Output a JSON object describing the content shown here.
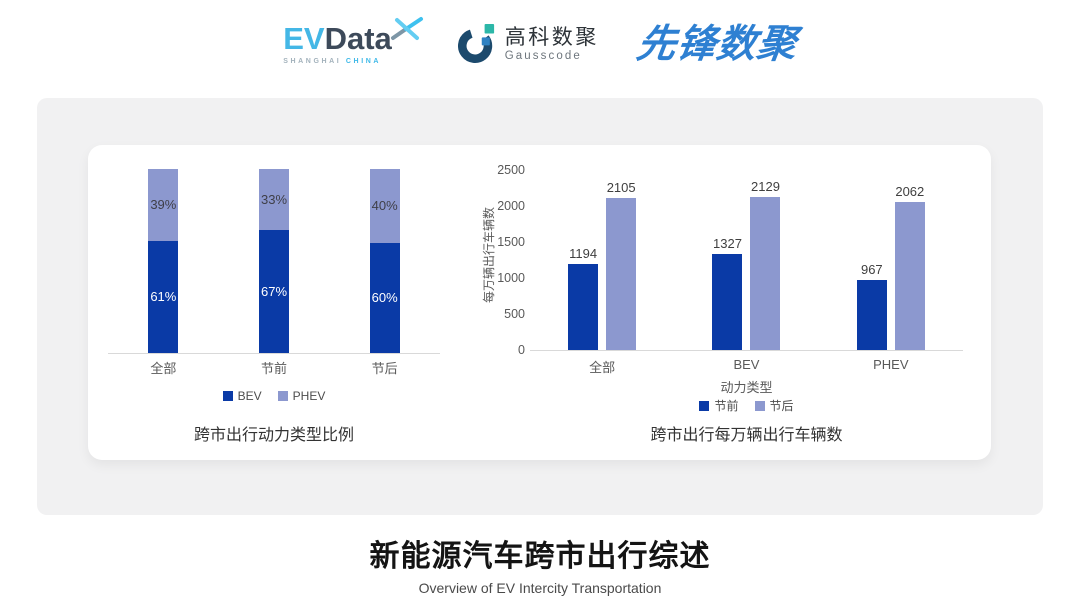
{
  "header": {
    "logos": {
      "evdata": {
        "word_ev": "EV",
        "word_data": "Data",
        "sub_left": "SHANGHAI",
        "sub_right": "CHINA"
      },
      "gausscode": {
        "name_cn": "高科数聚",
        "name_en": "Gausscode"
      },
      "xianfeng": {
        "name_cn": "先锋数聚"
      }
    }
  },
  "chart_data": [
    {
      "type": "bar",
      "subtype": "stacked-100-percent",
      "title": "跨市出行动力类型比例",
      "categories": [
        "全部",
        "节前",
        "节后"
      ],
      "series": [
        {
          "name": "BEV",
          "color": "#0a3aa6",
          "label_color": "#ffffff",
          "values": [
            61,
            67,
            60
          ]
        },
        {
          "name": "PHEV",
          "color": "#8c98cf",
          "label_color": "#3f3f48",
          "values": [
            39,
            33,
            40
          ]
        }
      ],
      "value_suffix": "%",
      "legend_position": "bottom",
      "grid": false
    },
    {
      "type": "bar",
      "subtype": "grouped",
      "title": "跨市出行每万辆出行车辆数",
      "categories": [
        "全部",
        "BEV",
        "PHEV"
      ],
      "series": [
        {
          "name": "节前",
          "color": "#0a3aa6",
          "values": [
            1194,
            1327,
            967
          ]
        },
        {
          "name": "节后",
          "color": "#8c98cf",
          "values": [
            2105,
            2129,
            2062
          ]
        }
      ],
      "xlabel": "动力类型",
      "ylabel": "每万辆出行车辆数",
      "ylim": [
        0,
        2500
      ],
      "yticks": [
        0,
        500,
        1000,
        1500,
        2000,
        2500
      ],
      "legend_position": "bottom",
      "grid": false
    }
  ],
  "footer": {
    "title_cn": "新能源汽车跨市出行综述",
    "title_en": "Overview of EV Intercity Transportation"
  },
  "colors": {
    "bar_dark_blue": "#0a3aa6",
    "bar_light_periwinkle": "#8c98cf",
    "card_background": "#f1f1f2",
    "axis_line": "#d9d9d9",
    "evdata_cyan": "#44b7e6",
    "evdata_slate": "#3d4a5a",
    "gauss_navy": "#1c4a6d",
    "gauss_teal": "#2cb7a8",
    "gauss_blue": "#2e82c3",
    "xianfeng_blue": "#2e80d2"
  }
}
